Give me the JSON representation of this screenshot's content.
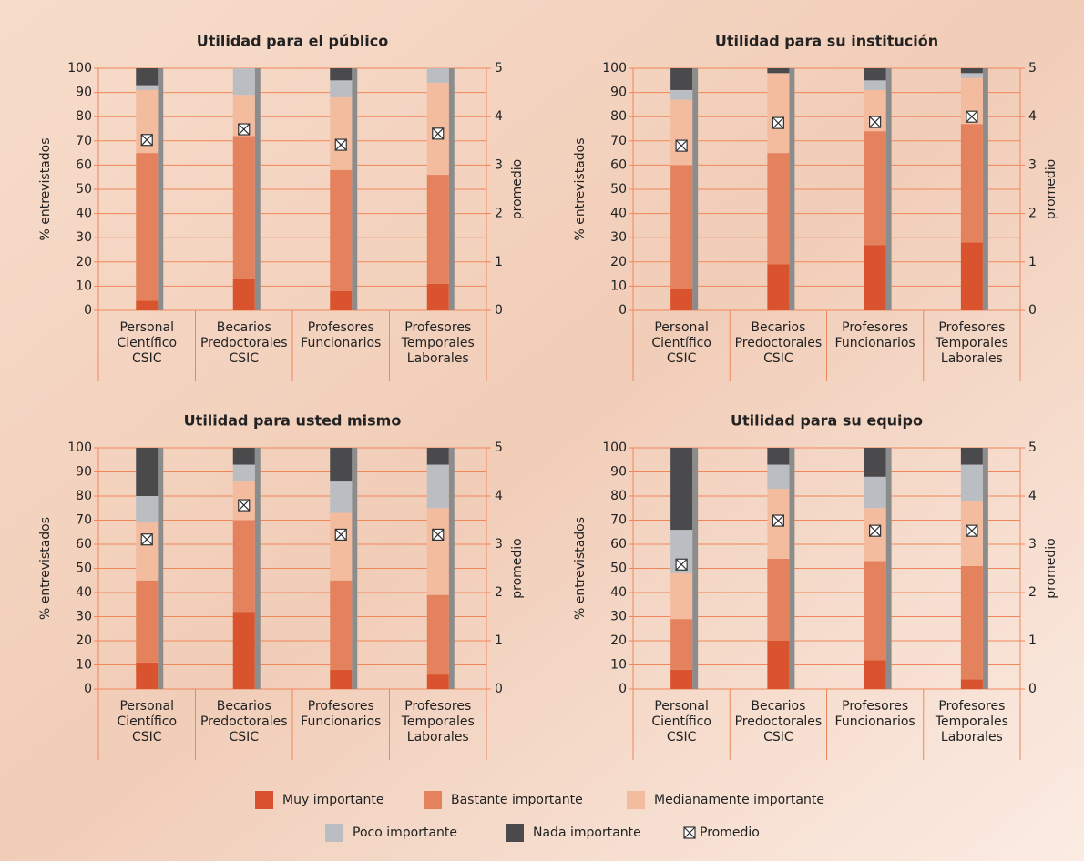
{
  "chart_data": [
    {
      "type": "stacked-bar",
      "title": "Utilidad para el público",
      "ylabel": "% entrevistados",
      "y2label": "promedio",
      "categories": [
        [
          "Personal",
          "Científico",
          "CSIC"
        ],
        [
          "Becarios",
          "Predoctorales",
          "CSIC"
        ],
        [
          "Profesores",
          "Funcionarios"
        ],
        [
          "Profesores",
          "Temporales",
          "Laborales"
        ]
      ],
      "ylim": [
        0,
        100
      ],
      "yticks": [
        0,
        10,
        20,
        30,
        40,
        50,
        60,
        70,
        80,
        90,
        100
      ],
      "y2lim": [
        0,
        5
      ],
      "y2ticks": [
        0,
        1,
        2,
        3,
        4,
        5
      ],
      "grid": true,
      "series": [
        {
          "values": [
            4,
            13,
            8,
            11
          ]
        },
        {
          "values": [
            61,
            59,
            50,
            45
          ]
        },
        {
          "values": [
            26,
            17,
            30,
            38
          ]
        },
        {
          "values": [
            2,
            11,
            7,
            6
          ]
        },
        {
          "values": [
            7,
            0,
            5,
            0
          ]
        }
      ],
      "promedio": {
        "axis": "y2",
        "values": [
          3.52,
          3.74,
          3.42,
          3.65
        ]
      }
    },
    {
      "type": "stacked-bar",
      "title": "Utilidad para su institución",
      "ylabel": "% entrevistados",
      "y2label": "promedio",
      "categories": [
        [
          "Personal",
          "Científico",
          "CSIC"
        ],
        [
          "Becarios",
          "Predoctorales",
          "CSIC"
        ],
        [
          "Profesores",
          "Funcionarios"
        ],
        [
          "Profesores",
          "Temporales",
          "Laborales"
        ]
      ],
      "ylim": [
        0,
        100
      ],
      "yticks": [
        0,
        10,
        20,
        30,
        40,
        50,
        60,
        70,
        80,
        90,
        100
      ],
      "y2lim": [
        0,
        5
      ],
      "y2ticks": [
        0,
        1,
        2,
        3,
        4,
        5
      ],
      "grid": true,
      "series": [
        {
          "values": [
            9,
            19,
            27,
            28
          ]
        },
        {
          "values": [
            51,
            46,
            47,
            49
          ]
        },
        {
          "values": [
            27,
            33,
            17,
            19
          ]
        },
        {
          "values": [
            4,
            0,
            4,
            2
          ]
        },
        {
          "values": [
            9,
            2,
            5,
            2
          ]
        }
      ],
      "promedio": {
        "axis": "y2",
        "values": [
          3.4,
          3.87,
          3.89,
          4.0
        ]
      }
    },
    {
      "type": "stacked-bar",
      "title": "Utilidad para usted mismo",
      "ylabel": "% entrevistados",
      "y2label": "promedio",
      "categories": [
        [
          "Personal",
          "Científico",
          "CSIC"
        ],
        [
          "Becarios",
          "Predoctorales",
          "CSIC"
        ],
        [
          "Profesores",
          "Funcionarios"
        ],
        [
          "Profesores",
          "Temporales",
          "Laborales"
        ]
      ],
      "ylim": [
        0,
        100
      ],
      "yticks": [
        0,
        10,
        20,
        30,
        40,
        50,
        60,
        70,
        80,
        90,
        100
      ],
      "y2lim": [
        0,
        5
      ],
      "y2ticks": [
        0,
        1,
        2,
        3,
        4,
        5
      ],
      "grid": true,
      "series": [
        {
          "values": [
            11,
            32,
            8,
            6
          ]
        },
        {
          "values": [
            34,
            38,
            37,
            33
          ]
        },
        {
          "values": [
            24,
            16,
            28,
            36
          ]
        },
        {
          "values": [
            11,
            7,
            13,
            18
          ]
        },
        {
          "values": [
            20,
            7,
            14,
            7
          ]
        }
      ],
      "promedio": {
        "axis": "y2",
        "values": [
          3.1,
          3.81,
          3.2,
          3.2
        ]
      }
    },
    {
      "type": "stacked-bar",
      "title": "Utilidad para su equipo",
      "ylabel": "% entrevistados",
      "y2label": "promedio",
      "categories": [
        [
          "Personal",
          "Científico",
          "CSIC"
        ],
        [
          "Becarios",
          "Predoctorales",
          "CSIC"
        ],
        [
          "Profesores",
          "Funcionarios"
        ],
        [
          "Profesores",
          "Temporales",
          "Laborales"
        ]
      ],
      "ylim": [
        0,
        100
      ],
      "yticks": [
        0,
        10,
        20,
        30,
        40,
        50,
        60,
        70,
        80,
        90,
        100
      ],
      "y2lim": [
        0,
        5
      ],
      "y2ticks": [
        0,
        1,
        2,
        3,
        4,
        5
      ],
      "grid": true,
      "series": [
        {
          "values": [
            8,
            20,
            12,
            4
          ]
        },
        {
          "values": [
            21,
            34,
            41,
            47
          ]
        },
        {
          "values": [
            19,
            29,
            22,
            27
          ]
        },
        {
          "values": [
            18,
            10,
            13,
            15
          ]
        },
        {
          "values": [
            34,
            7,
            12,
            7
          ]
        }
      ],
      "promedio": {
        "axis": "y2",
        "values": [
          2.58,
          3.49,
          3.28,
          3.28
        ]
      }
    }
  ],
  "legend": {
    "series": [
      {
        "name": "Muy importante",
        "color": "#d9532f"
      },
      {
        "name": "Bastante importante",
        "color": "#e4825e"
      },
      {
        "name": "Medianamente importante",
        "color": "#f3bc9f"
      },
      {
        "name": "Poco importante",
        "color": "#babdc2"
      },
      {
        "name": "Nada importante",
        "color": "#4a4a4c"
      }
    ],
    "marker": "Promedio"
  }
}
